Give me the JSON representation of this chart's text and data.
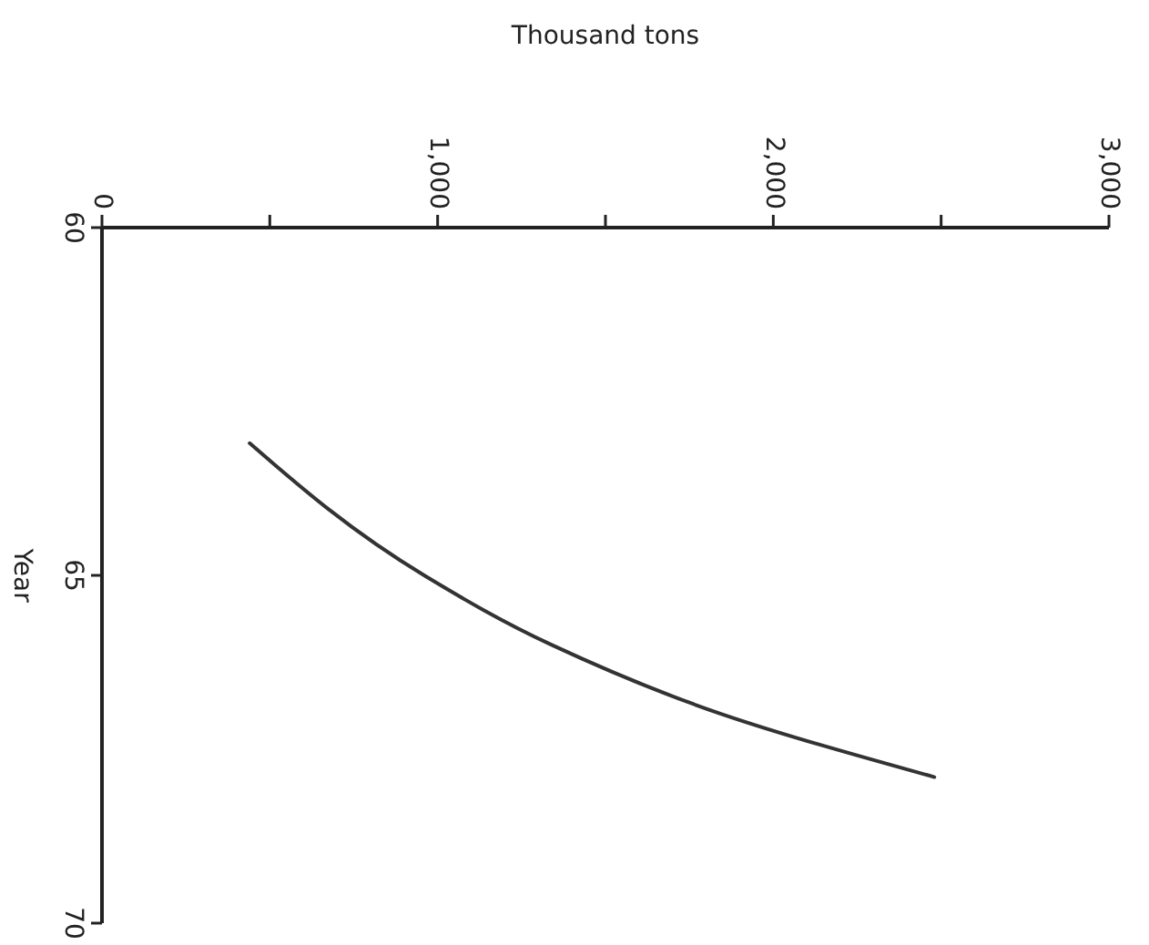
{
  "chart_data": {
    "type": "line",
    "orientation": "horizontal",
    "xlabel": "Thousand tons",
    "ylabel": "Year",
    "x": [
      63.1,
      65,
      66,
      67,
      67.9
    ],
    "series": [
      {
        "color": "#333333",
        "values": [
          440,
          960,
          1340,
          1850,
          2480
        ]
      }
    ],
    "xlim": [
      0,
      3000
    ],
    "xticks": [
      {
        "value": 0,
        "label": "0"
      },
      {
        "value": 500,
        "label": null
      },
      {
        "value": 1000,
        "label": "1,000"
      },
      {
        "value": 1500,
        "label": null
      },
      {
        "value": 2000,
        "label": "2,000"
      },
      {
        "value": 2500,
        "label": null
      },
      {
        "value": 3000,
        "label": "3,000"
      }
    ],
    "ylim": [
      70,
      60
    ],
    "yticks": [
      60,
      65,
      70
    ],
    "grid": false,
    "marker": "none",
    "line_style": "solid"
  }
}
